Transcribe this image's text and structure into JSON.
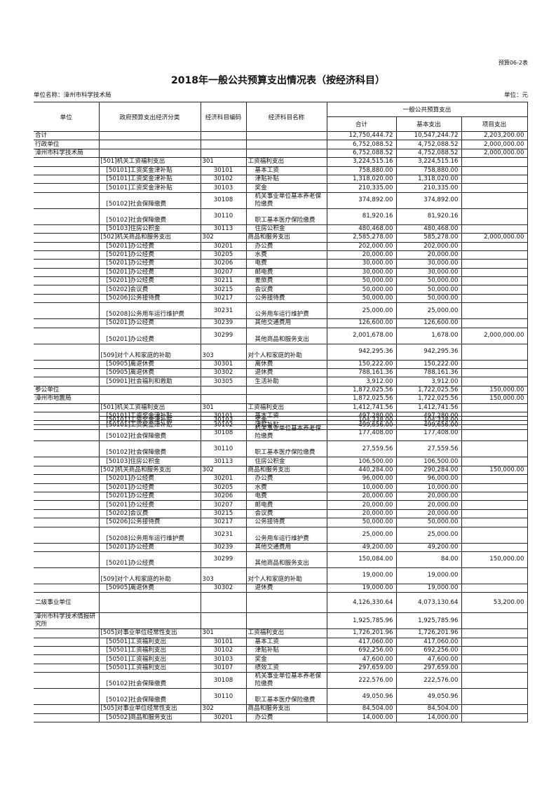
{
  "form_no": "预算06-2表",
  "title": "2018年一般公共预算支出情况表（按经济科目）",
  "unit_name": "单位名称：漳州市科学技术局",
  "unit_label": "单位：元",
  "headers": {
    "unit": "单位",
    "gov_class": "政府预算支出经济分类",
    "econ_code": "经济科目编码",
    "econ_name": "经济科目名称",
    "group": "一般公共预算支出",
    "total": "合计",
    "basic": "基本支出",
    "project": "项目支出"
  },
  "block1": [
    [
      "合计",
      "",
      "",
      "",
      "12,750,444.72",
      "10,547,244.72",
      "2,203,200.00"
    ],
    [
      "行政单位",
      "",
      "",
      "",
      "6,752,088.52",
      "4,752,088.52",
      "2,000,000.00"
    ],
    [
      "漳州市科学技术局",
      "",
      "",
      "",
      "6,752,088.52",
      "4,752,088.52",
      "2,000,000.00"
    ],
    [
      "",
      "[501]机关工资福利支出",
      "301",
      "工资福利支出",
      "3,224,515.16",
      "3,224,515.16",
      ""
    ],
    [
      "",
      "[50101]工资奖金津补贴",
      "30101",
      "基本工资",
      "758,880.00",
      "758,880.00",
      ""
    ],
    [
      "",
      "[50101]工资奖金津补贴",
      "30102",
      "津贴补贴",
      "1,318,020.00",
      "1,318,020.00",
      ""
    ],
    [
      "",
      "[50101]工资奖金津补贴",
      "30103",
      "奖金",
      "210,335.00",
      "210,335.00",
      ""
    ],
    [
      "",
      "[50102]社会保障缴费",
      "30108",
      "机关事业单位基本养老保险缴费",
      "374,892.00",
      "374,892.00",
      ""
    ],
    [
      "",
      "[50102]社会保障缴费",
      "30110",
      "职工基本医疗保险缴费",
      "81,920.16",
      "81,920.16",
      ""
    ],
    [
      "",
      "[50103]住房公积金",
      "30113",
      "住房公积金",
      "480,468.00",
      "480,468.00",
      ""
    ],
    [
      "",
      "[502]机关商品和服务支出",
      "302",
      "商品和服务支出",
      "2,585,278.00",
      "585,278.00",
      "2,000,000.00"
    ],
    [
      "",
      "[50201]办公经费",
      "30201",
      "办公费",
      "202,000.00",
      "202,000.00",
      ""
    ],
    [
      "",
      "[50201]办公经费",
      "30205",
      "水费",
      "20,000.00",
      "20,000.00",
      ""
    ],
    [
      "",
      "[50201]办公经费",
      "30206",
      "电费",
      "30,000.00",
      "30,000.00",
      ""
    ],
    [
      "",
      "[50201]办公经费",
      "30207",
      "邮电费",
      "30,000.00",
      "30,000.00",
      ""
    ],
    [
      "",
      "[50201]办公经费",
      "30211",
      "差旅费",
      "50,000.00",
      "50,000.00",
      ""
    ],
    [
      "",
      "[50202]会议费",
      "30215",
      "会议费",
      "50,000.00",
      "50,000.00",
      ""
    ],
    [
      "",
      "[50206]公务接待费",
      "30217",
      "公务接待费",
      "50,000.00",
      "50,000.00",
      ""
    ],
    [
      "",
      "[50208]公务用车运行维护费",
      "30231",
      "公务用车运行维护费",
      "25,000.00",
      "25,000.00",
      ""
    ],
    [
      "",
      "[50201]办公经费",
      "30239",
      "其他交通费用",
      "126,600.00",
      "126,600.00",
      ""
    ],
    [
      "",
      "[50201]办公经费",
      "30299",
      "其他商品和服务支出",
      "2,001,678.00",
      "1,678.00",
      "2,000,000.00"
    ],
    [
      "",
      "[509]对个人和家庭的补助",
      "303",
      "对个人和家庭的补助",
      "942,295.36",
      "942,295.36",
      ""
    ],
    [
      "",
      "[50905]离退休费",
      "30301",
      "离休费",
      "150,222.00",
      "150,222.00",
      ""
    ],
    [
      "",
      "[50905]离退休费",
      "30302",
      "退休费",
      "788,161.36",
      "788,161.36",
      ""
    ],
    [
      "",
      "[50901]社会福利和救助",
      "30305",
      "生活补助",
      "3,912.00",
      "3,912.00",
      ""
    ],
    [
      "参公单位",
      "",
      "",
      "",
      "1,872,025.56",
      "1,722,025.56",
      "150,000.00"
    ],
    [
      "漳州市地震局",
      "",
      "",
      "",
      "1,872,025.56",
      "1,722,025.56",
      "150,000.00"
    ],
    [
      "",
      "[501]机关工资福利支出",
      "301",
      "工资福利支出",
      "1,412,741.56",
      "1,412,741.56",
      ""
    ],
    [
      "",
      "[50101]工资奖金津补贴",
      "30101",
      "基本工资",
      "497,280.00",
      "497,280.00",
      ""
    ],
    [
      "",
      "[50101]工资奖金津补贴",
      "30102",
      "津贴补贴",
      "499,656.00",
      "499,656.00",
      ""
    ]
  ],
  "block2": [
    [
      "",
      "[50101]工资奖金津补贴",
      "30103",
      "奖金",
      "104,338.00",
      "104,338.00",
      ""
    ],
    [
      "",
      "[50102]社会保障缴费",
      "30108",
      "机关事业单位基本养老保险缴费",
      "177,408.00",
      "177,408.00",
      ""
    ],
    [
      "",
      "[50102]社会保障缴费",
      "30110",
      "职工基本医疗保险缴费",
      "27,559.56",
      "27,559.56",
      ""
    ],
    [
      "",
      "[50103]住房公积金",
      "30113",
      "住房公积金",
      "106,500.00",
      "106,500.00",
      ""
    ],
    [
      "",
      "[502]机关商品和服务支出",
      "302",
      "商品和服务支出",
      "440,284.00",
      "290,284.00",
      "150,000.00"
    ],
    [
      "",
      "[50201]办公经费",
      "30201",
      "办公费",
      "96,000.00",
      "96,000.00",
      ""
    ],
    [
      "",
      "[50201]办公经费",
      "30205",
      "水费",
      "10,000.00",
      "10,000.00",
      ""
    ],
    [
      "",
      "[50201]办公经费",
      "30206",
      "电费",
      "20,000.00",
      "20,000.00",
      ""
    ],
    [
      "",
      "[50201]办公经费",
      "30207",
      "邮电费",
      "20,000.00",
      "20,000.00",
      ""
    ],
    [
      "",
      "[50202]会议费",
      "30215",
      "会议费",
      "20,000.00",
      "20,000.00",
      ""
    ],
    [
      "",
      "[50206]公务接待费",
      "30217",
      "公务接待费",
      "50,000.00",
      "50,000.00",
      ""
    ],
    [
      "",
      "[50208]公务用车运行维护费",
      "30231",
      "公务用车运行维护费",
      "25,000.00",
      "25,000.00",
      ""
    ],
    [
      "",
      "[50201]办公经费",
      "30239",
      "其他交通费用",
      "49,200.00",
      "49,200.00",
      ""
    ],
    [
      "",
      "[50201]办公经费",
      "30299",
      "其他商品和服务支出",
      "150,084.00",
      "84.00",
      "150,000.00"
    ],
    [
      "",
      "[509]对个人和家庭的补助",
      "303",
      "对个人和家庭的补助",
      "19,000.00",
      "19,000.00",
      ""
    ],
    [
      "",
      "[50905]离退休费",
      "30302",
      "退休费",
      "19,000.00",
      "19,000.00",
      ""
    ],
    [
      "二级事业单位",
      "",
      "",
      "",
      "4,126,330.64",
      "4,073,130.64",
      "53,200.00"
    ],
    [
      "漳州市科学技术情报研究所",
      "",
      "",
      "",
      "1,925,785.96",
      "1,925,785.96",
      ""
    ],
    [
      "",
      "[505]对事业单位经常性支出",
      "301",
      "工资福利支出",
      "1,726,201.96",
      "1,726,201.96",
      ""
    ],
    [
      "",
      "[50501]工资福利支出",
      "30101",
      "基本工资",
      "417,060.00",
      "417,060.00",
      ""
    ],
    [
      "",
      "[50501]工资福利支出",
      "30102",
      "津贴补贴",
      "692,256.00",
      "692,256.00",
      ""
    ],
    [
      "",
      "[50501]工资福利支出",
      "30103",
      "奖金",
      "47,600.00",
      "47,600.00",
      ""
    ],
    [
      "",
      "[50501]工资福利支出",
      "30107",
      "绩效工资",
      "297,659.00",
      "297,659.00",
      ""
    ],
    [
      "",
      "[50102]社会保障缴费",
      "30108",
      "机关事业单位基本养老保险缴费",
      "222,576.00",
      "222,576.00",
      ""
    ],
    [
      "",
      "[50102]社会保障缴费",
      "30110",
      "职工基本医疗保险缴费",
      "49,050.96",
      "49,050.96",
      ""
    ],
    [
      "",
      "[505]对事业单位经常性支出",
      "302",
      "商品和服务支出",
      "84,504.00",
      "84,504.00",
      ""
    ],
    [
      "",
      "[50502]商品和服务支出",
      "30201",
      "办公费",
      "14,000.00",
      "14,000.00",
      ""
    ]
  ]
}
